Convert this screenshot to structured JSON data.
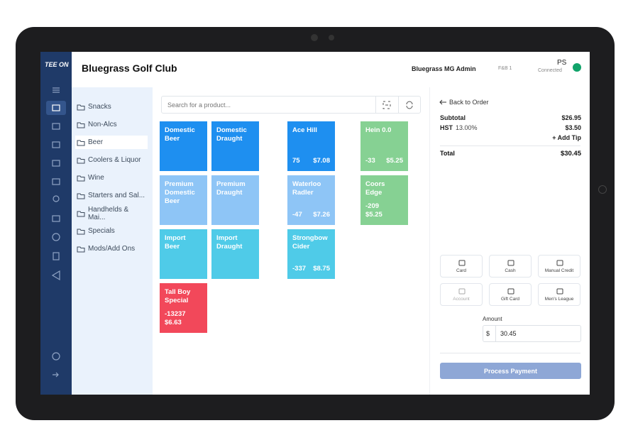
{
  "logo": "TEE ON",
  "header": {
    "title": "Bluegrass Golf Club",
    "user": "Bluegrass MG Admin",
    "station": "F&B 1",
    "initials": "PS",
    "status": "Connected"
  },
  "categories": [
    "Snacks",
    "Non-Alcs",
    "Beer",
    "Coolers & Liquor",
    "Wine",
    "Starters and Sal...",
    "Handhelds & Mai...",
    "Specials",
    "Mods/Add Ons"
  ],
  "search": {
    "placeholder": "Search for a product..."
  },
  "products": [
    {
      "name": "Domestic Beer"
    },
    {
      "name": "Domestic Draught"
    },
    {
      "name": "Ace Hill",
      "stock": "75",
      "price": "$7.08"
    },
    {
      "name": "Hein 0.0",
      "stock": "-33",
      "price": "$5.25"
    },
    {
      "name": "Premium Domestic Beer"
    },
    {
      "name": "Premium Draught"
    },
    {
      "name": "Waterloo Radler",
      "stock": "-47",
      "price": "$7.26"
    },
    {
      "name": "Coors Edge",
      "stock": "-209",
      "price": "$5.25"
    },
    {
      "name": "Import Beer"
    },
    {
      "name": "Import Draught"
    },
    {
      "name": "Strongbow Cider",
      "stock": "-337",
      "price": "$8.75"
    },
    {
      "name": "Tall Boy Special",
      "stock": "-13237",
      "price": "$6.63"
    }
  ],
  "order": {
    "back": "Back to Order",
    "subtotal_label": "Subtotal",
    "subtotal": "$26.95",
    "tax_label": "HST",
    "tax_rate": "13.00%",
    "tax": "$3.50",
    "add_tip": "+ Add Tip",
    "total_label": "Total",
    "total": "$30.45"
  },
  "payment_methods": [
    "Card",
    "Cash",
    "Manual Credit",
    "Account",
    "Gift Card",
    "Men's League"
  ],
  "amount": {
    "label": "Amount",
    "currency": "$",
    "value": "30.45"
  },
  "process_button": "Process Payment"
}
